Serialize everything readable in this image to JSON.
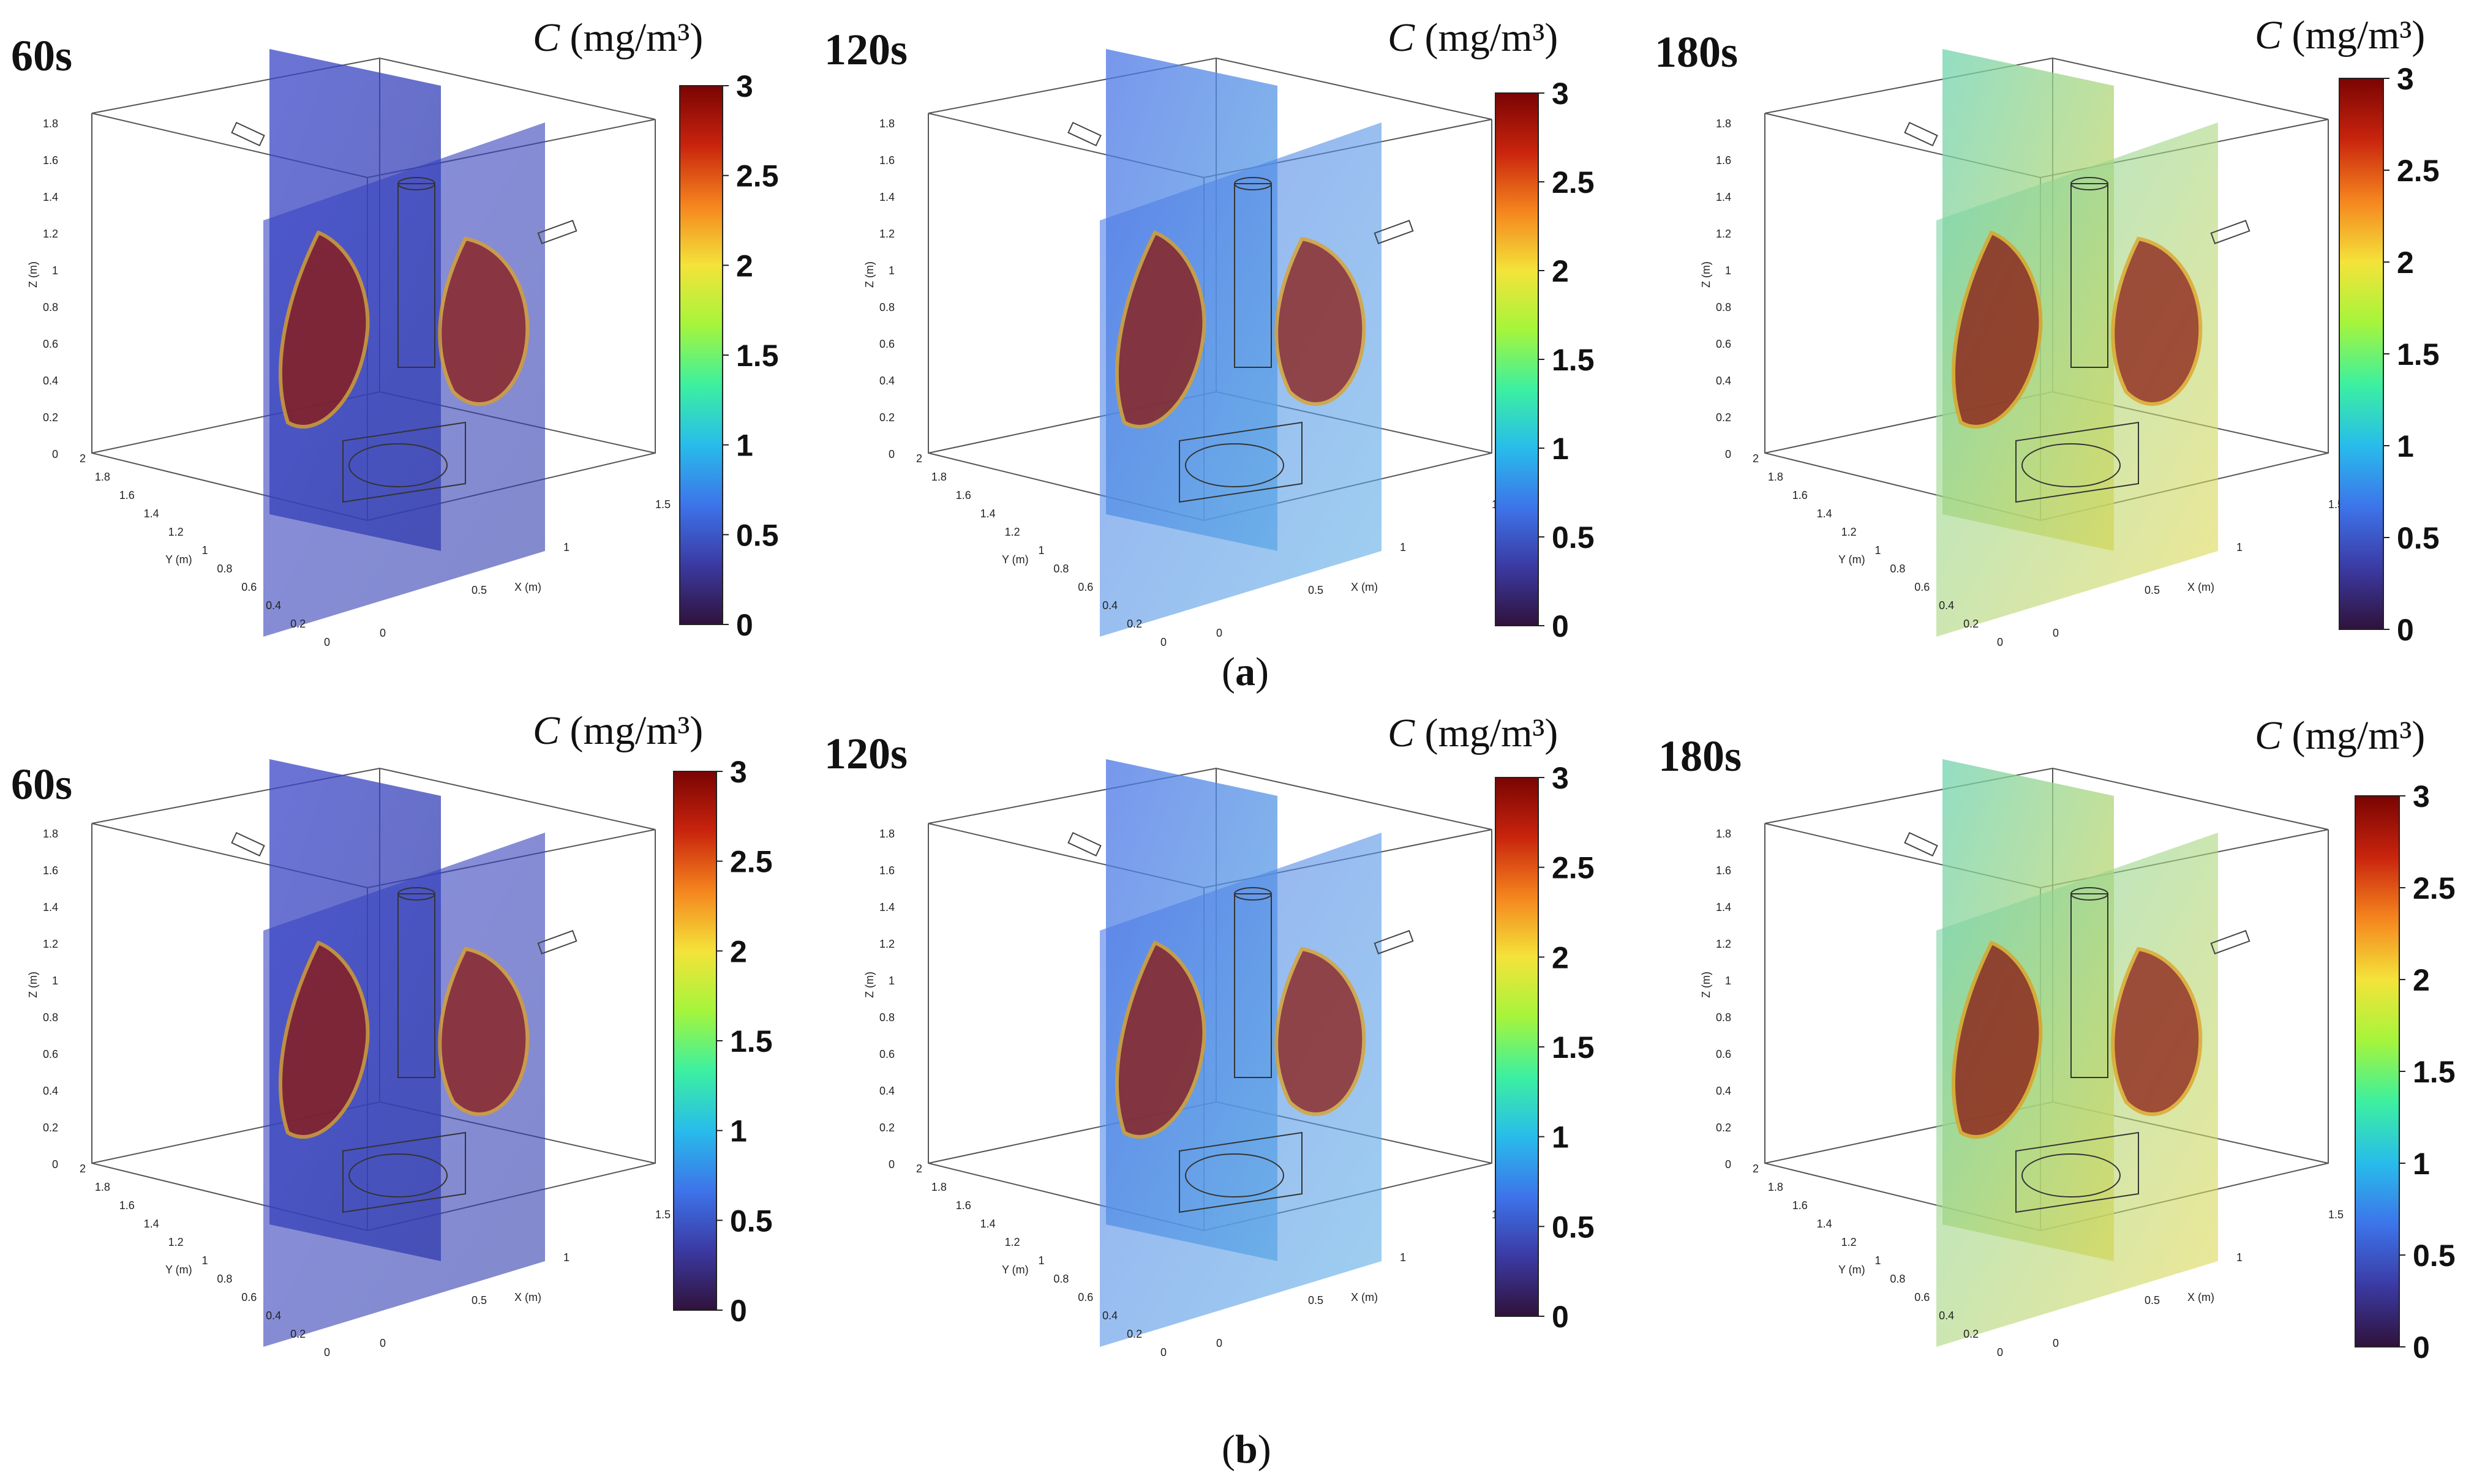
{
  "figure": {
    "row_a_caption": "a",
    "row_b_caption": "b"
  },
  "colorbar": {
    "unit_symbol": "C",
    "unit_text": "(mg/m³)",
    "ticks": [
      "3",
      "2.5",
      "2",
      "1.5",
      "1",
      "0.5",
      "0"
    ],
    "colors": [
      "#7a0403",
      "#c9240d",
      "#f5851e",
      "#f4e33a",
      "#a5f53b",
      "#3cf0a0",
      "#28bceb",
      "#3d74ea",
      "#3b3aa3",
      "#30123b"
    ]
  },
  "axes": {
    "z_label": "Z (m)",
    "y_label": "Y (m)",
    "x_label": "X (m)",
    "z_ticks": [
      "1.8",
      "1.6",
      "1.4",
      "1.2",
      "1",
      "0.8",
      "0.6",
      "0.4",
      "0.2",
      "0"
    ],
    "y_ticks": [
      "2",
      "1.8",
      "1.6",
      "1.4",
      "1.2",
      "1",
      "0.8",
      "0.6",
      "0.4",
      "0.2",
      "0"
    ],
    "x_ticks": [
      "0",
      "0.5",
      "1",
      "1.5"
    ]
  },
  "panels": [
    {
      "id": "a1",
      "time": "60s"
    },
    {
      "id": "a2",
      "time": "120s"
    },
    {
      "id": "a3",
      "time": "180s"
    },
    {
      "id": "b1",
      "time": "60s"
    },
    {
      "id": "b2",
      "time": "120s"
    },
    {
      "id": "b3",
      "time": "180s"
    }
  ]
}
